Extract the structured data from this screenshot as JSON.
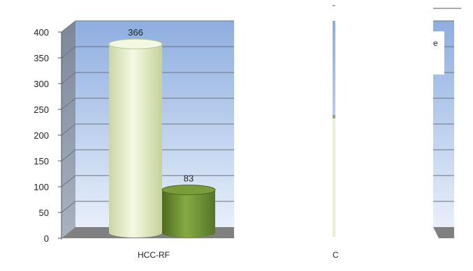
{
  "chart_data": {
    "type": "bar",
    "categories": [
      "HCC-RF",
      "C"
    ],
    "series": [
      {
        "values": [
          366,
          null
        ]
      },
      {
        "values": [
          83,
          null
        ]
      }
    ],
    "data_labels": [
      "366",
      "83"
    ],
    "yticks": [
      "400",
      "350",
      "300",
      "250",
      "200",
      "150",
      "100",
      "50",
      "0"
    ],
    "ylim": [
      0,
      400
    ],
    "legend_fragment": "e",
    "grid": true,
    "colors": {
      "wall_top": "#8eaee0",
      "wall_bottom": "#e8effa",
      "side_wall": "#8a96a8",
      "floor": "#808080",
      "bar_light": "#eef4d2",
      "bar_dark": "#6a8f2e",
      "partial_bar": "#e6f2cf",
      "legend_bg": "#ffffff"
    }
  }
}
